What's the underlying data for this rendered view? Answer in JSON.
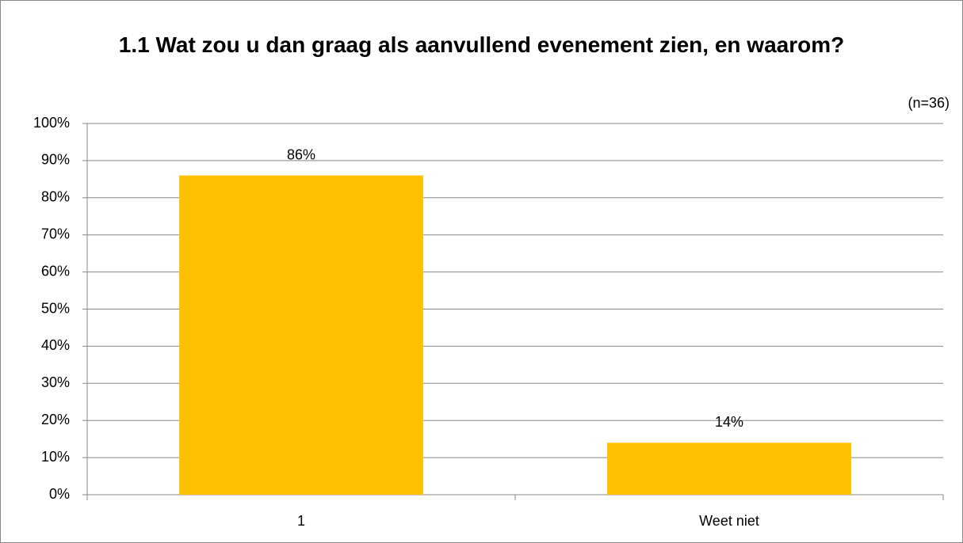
{
  "chart_data": {
    "type": "bar",
    "title": "1.1 Wat zou u dan graag als aanvullend evenement zien, en waarom?",
    "annotation": "(n=36)",
    "categories": [
      "1",
      "Weet niet"
    ],
    "values": [
      86,
      14
    ],
    "value_labels": [
      "86%",
      "14%"
    ],
    "color": "#FFC000",
    "ylim": [
      0,
      100
    ],
    "yticks": [
      {
        "value": 0,
        "label": "0%"
      },
      {
        "value": 10,
        "label": "10%"
      },
      {
        "value": 20,
        "label": "20%"
      },
      {
        "value": 30,
        "label": "30%"
      },
      {
        "value": 40,
        "label": "40%"
      },
      {
        "value": 50,
        "label": "50%"
      },
      {
        "value": 60,
        "label": "60%"
      },
      {
        "value": 70,
        "label": "70%"
      },
      {
        "value": 80,
        "label": "80%"
      },
      {
        "value": 90,
        "label": "90%"
      },
      {
        "value": 100,
        "label": "100%"
      }
    ],
    "grid": true
  }
}
